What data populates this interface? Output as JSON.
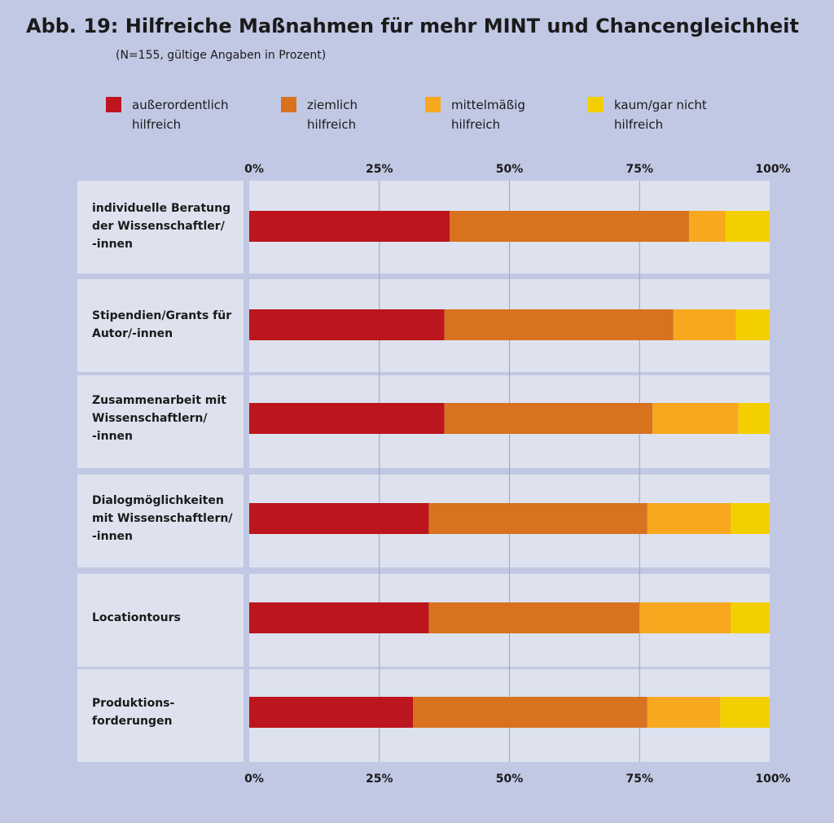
{
  "chart_data": {
    "type": "bar",
    "orientation": "horizontal",
    "stacked": true,
    "title": "Abb. 19:  Hilfreiche Maßnahmen für mehr MINT und Chancengleichheit",
    "subtitle": "(N=155, gültige Angaben in Prozent)",
    "x_ticks": [
      "0%",
      "25%",
      "50%",
      "75%",
      "100%"
    ],
    "xlim": [
      0,
      100
    ],
    "legend_position": "top",
    "categories": [
      "individuelle Beratung\nder Wissenschaftler/\n-innen",
      "Stipendien/Grants für\nAutor/-innen",
      "Zusammenarbeit mit\nWissenschaftlern/\n-innen",
      "Dialogmöglichkeiten\nmit Wissenschaftlern/\n-innen",
      "Locationtours",
      "Produktions-\nforderungen"
    ],
    "series": [
      {
        "name": "außerordentlich\nhilfreich",
        "color": "#bc151d",
        "values": [
          38.5,
          37.5,
          37.5,
          34.5,
          34.5,
          31.5
        ]
      },
      {
        "name": "ziemlich\nhilfreich",
        "color": "#d8721e",
        "values": [
          46.0,
          44.0,
          40.0,
          42.0,
          40.5,
          45.0
        ]
      },
      {
        "name": "mittelmäßig\nhilfreich",
        "color": "#f7a81e",
        "values": [
          7.0,
          12.0,
          16.5,
          16.0,
          17.5,
          14.0
        ]
      },
      {
        "name": "kaum/gar nicht\nhilfreich",
        "color": "#f4cf00",
        "values": [
          8.5,
          6.5,
          6.0,
          7.5,
          7.5,
          9.5
        ]
      }
    ]
  }
}
